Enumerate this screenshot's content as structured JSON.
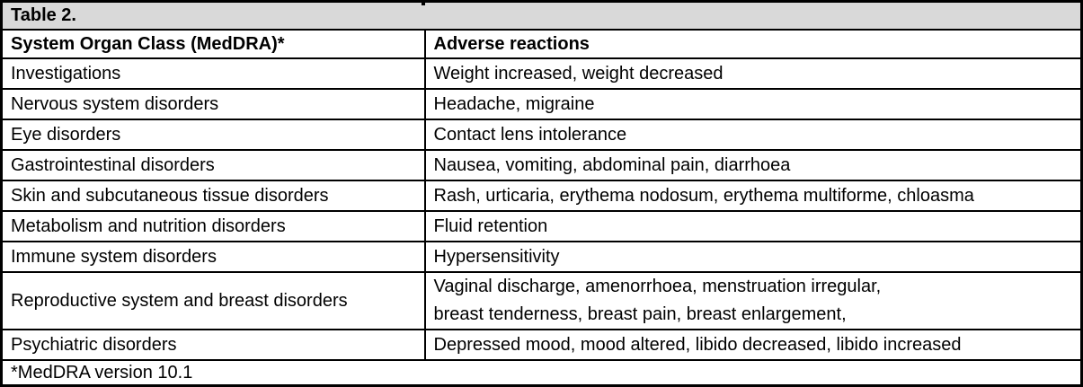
{
  "table": {
    "title": "Table 2.",
    "columns": [
      "System Organ Class (MedDRA)*",
      "Adverse reactions"
    ],
    "rows": [
      {
        "soc": "Investigations",
        "reactions": "Weight increased, weight decreased"
      },
      {
        "soc": "Nervous system disorders",
        "reactions": "Headache, migraine"
      },
      {
        "soc": "Eye disorders",
        "reactions": "Contact lens intolerance"
      },
      {
        "soc": "Gastrointestinal disorders",
        "reactions": "Nausea, vomiting, abdominal pain, diarrhoea"
      },
      {
        "soc": "Skin and subcutaneous tissue disorders",
        "reactions": "Rash, urticaria, erythema nodosum, erythema multiforme, chloasma"
      },
      {
        "soc": "Metabolism and nutrition disorders",
        "reactions": "Fluid retention"
      },
      {
        "soc": "Immune system disorders",
        "reactions": "Hypersensitivity"
      },
      {
        "soc": "Reproductive system and breast disorders",
        "reactions": "Vaginal discharge, amenorrhoea, menstruation irregular,\nbreast tenderness, breast pain, breast enlargement,"
      },
      {
        "soc": "Psychiatric disorders",
        "reactions": "Depressed mood, mood altered, libido decreased, libido increased"
      }
    ],
    "footnote": "*MedDRA version 10.1"
  },
  "colors": {
    "title_band_bg": "#d9d9d9",
    "border": "#000000",
    "text": "#000000",
    "page_bg": "#ffffff"
  }
}
